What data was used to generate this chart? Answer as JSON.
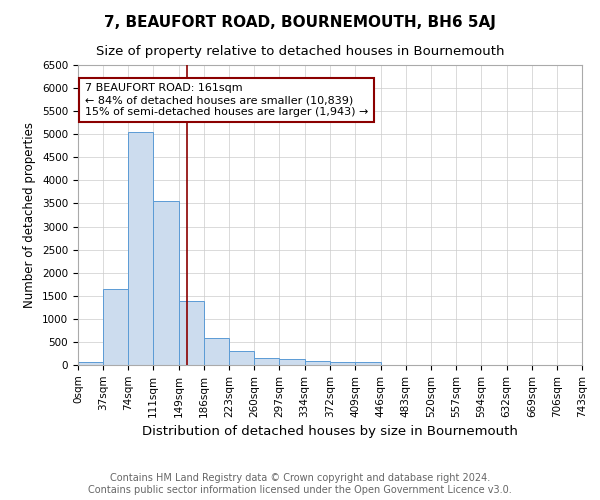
{
  "title": "7, BEAUFORT ROAD, BOURNEMOUTH, BH6 5AJ",
  "subtitle": "Size of property relative to detached houses in Bournemouth",
  "xlabel": "Distribution of detached houses by size in Bournemouth",
  "ylabel": "Number of detached properties",
  "footer1": "Contains HM Land Registry data © Crown copyright and database right 2024.",
  "footer2": "Contains public sector information licensed under the Open Government Licence v3.0.",
  "bin_edges": [
    0,
    37,
    74,
    111,
    149,
    186,
    223,
    260,
    297,
    334,
    372,
    409,
    446,
    483,
    520,
    557,
    594,
    632,
    669,
    706,
    743
  ],
  "bar_heights": [
    75,
    1650,
    5050,
    3550,
    1380,
    590,
    300,
    155,
    130,
    95,
    55,
    55,
    0,
    0,
    0,
    0,
    0,
    0,
    0,
    0
  ],
  "bar_color": "#ccdcee",
  "bar_edgecolor": "#5b9bd5",
  "property_size": 161,
  "vline_color": "#8b0000",
  "annotation_text": "7 BEAUFORT ROAD: 161sqm\n← 84% of detached houses are smaller (10,839)\n15% of semi-detached houses are larger (1,943) →",
  "annotation_box_color": "#ffffff",
  "annotation_box_edgecolor": "#8b0000",
  "ylim": [
    0,
    6500
  ],
  "yticks": [
    0,
    500,
    1000,
    1500,
    2000,
    2500,
    3000,
    3500,
    4000,
    4500,
    5000,
    5500,
    6000,
    6500
  ],
  "grid_color": "#cccccc",
  "background_color": "#ffffff",
  "title_fontsize": 11,
  "subtitle_fontsize": 9.5,
  "xlabel_fontsize": 9.5,
  "ylabel_fontsize": 8.5,
  "tick_fontsize": 7.5,
  "footer_fontsize": 7,
  "annotation_fontsize": 8
}
